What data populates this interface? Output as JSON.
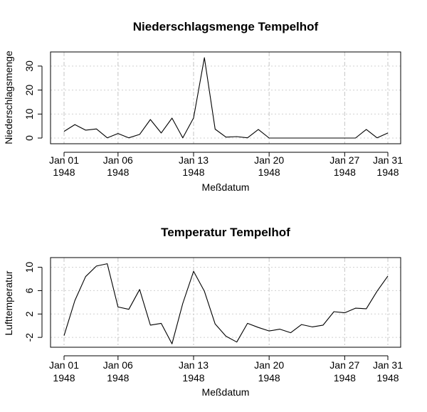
{
  "chart_data": [
    {
      "type": "line",
      "title": "Niederschlagsmenge Tempelhof",
      "xlabel": "Meßdatum",
      "ylabel": "Niederschlagsmenge",
      "x": [
        1,
        2,
        3,
        4,
        5,
        6,
        7,
        8,
        9,
        10,
        11,
        12,
        13,
        14,
        15,
        16,
        17,
        18,
        19,
        20,
        21,
        22,
        23,
        24,
        25,
        26,
        27,
        28,
        29,
        30,
        31
      ],
      "values": [
        2.8,
        5.6,
        3.3,
        3.8,
        0.1,
        1.9,
        0.1,
        1.5,
        7.7,
        2.1,
        8.3,
        0.1,
        8.4,
        33.5,
        3.7,
        0.4,
        0.6,
        0.1,
        3.6,
        0,
        0,
        0,
        0,
        0,
        0,
        0,
        0,
        0,
        3.6,
        0.1,
        2.1
      ],
      "ylim": [
        0,
        35
      ],
      "yticks": [
        0,
        10,
        20,
        30
      ],
      "xticks": [
        {
          "day": 1,
          "label": "Jan 01",
          "year": "1948"
        },
        {
          "day": 6,
          "label": "Jan 06",
          "year": "1948"
        },
        {
          "day": 13,
          "label": "Jan 13",
          "year": "1948"
        },
        {
          "day": 20,
          "label": "Jan 20",
          "year": "1948"
        },
        {
          "day": 27,
          "label": "Jan 27",
          "year": "1948"
        },
        {
          "day": 31,
          "label": "Jan 31",
          "year": "1948"
        }
      ],
      "grid": true
    },
    {
      "type": "line",
      "title": "Temperatur Tempelhof",
      "xlabel": "Meßdatum",
      "ylabel": "Lufttemperatur",
      "x": [
        1,
        2,
        3,
        4,
        5,
        6,
        7,
        8,
        9,
        10,
        11,
        12,
        13,
        14,
        15,
        16,
        17,
        18,
        19,
        20,
        21,
        22,
        23,
        24,
        25,
        26,
        27,
        28,
        29,
        30,
        31
      ],
      "values": [
        -1.7,
        4.3,
        8.4,
        10.2,
        10.6,
        3.2,
        2.8,
        6.2,
        0.1,
        0.4,
        -3.1,
        3.8,
        9.3,
        5.9,
        0.3,
        -1.8,
        -2.8,
        0.4,
        -0.3,
        -0.9,
        -0.6,
        -1.2,
        0.2,
        -0.2,
        0.1,
        2.4,
        2.2,
        3.0,
        2.9,
        5.9,
        8.5
      ],
      "ylim": [
        -3.2,
        10.8
      ],
      "yticks": [
        -2,
        2,
        6,
        10
      ],
      "xticks": [
        {
          "day": 1,
          "label": "Jan 01",
          "year": "1948"
        },
        {
          "day": 6,
          "label": "Jan 06",
          "year": "1948"
        },
        {
          "day": 13,
          "label": "Jan 13",
          "year": "1948"
        },
        {
          "day": 20,
          "label": "Jan 20",
          "year": "1948"
        },
        {
          "day": 27,
          "label": "Jan 27",
          "year": "1948"
        },
        {
          "day": 31,
          "label": "Jan 31",
          "year": "1948"
        }
      ],
      "grid": true
    }
  ]
}
